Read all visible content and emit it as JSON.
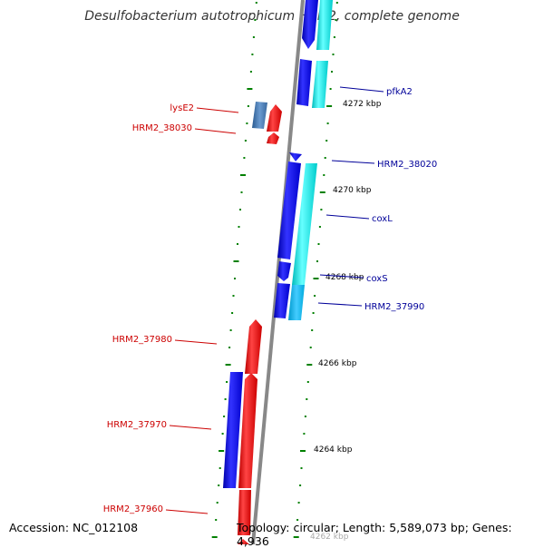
{
  "title": "Desulfobacterium autotrophicum HRM2, complete genome",
  "footer": {
    "accession": "Accession: NC_012108",
    "topology": "Topology: circular; Length: 5,589,073 bp; Genes: 4,936"
  },
  "colors": {
    "forward_cds": "#0000ff",
    "forward_alt": "#00ffff",
    "reverse_cds": "#ff0000",
    "reverse_alt": "#4a7ab0",
    "backbone": "#808080",
    "ticks": "#008000",
    "label_forward": "#000099",
    "label_reverse": "#cc0000"
  },
  "kbp_labels": [
    "4272 kbp",
    "4270 kbp",
    "4268 kbp",
    "4266 kbp",
    "4264 kbp",
    "4262 kbp"
  ],
  "right_labels": [
    "pfkA2",
    "HRM2_38020",
    "coxL",
    "coxS",
    "HRM2_37990"
  ],
  "left_labels": [
    "lysE2",
    "HRM2_38030",
    "HRM2_37980",
    "HRM2_37970",
    "HRM2_37960"
  ]
}
